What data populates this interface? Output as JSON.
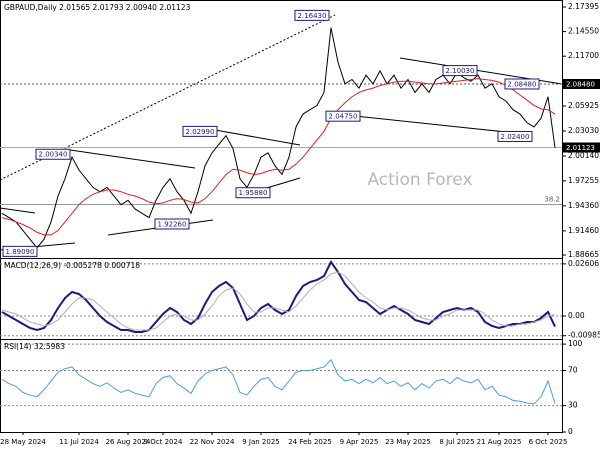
{
  "chart_data": [
    {
      "type": "line",
      "title": "GBPAUD,Daily 2.01565 2.01793 2.00940 2.01123",
      "watermark": "Action Forex",
      "ylim": [
        1.8832,
        2.1821
      ],
      "yticks": [
        2.17395,
        {
          "value": 2.1455,
          "label": "2.14550"
        },
        {
          "value": 2.117,
          "label": "2.11700"
        },
        2.05925,
        {
          "value": 2.0303,
          "label": "2.03030"
        },
        {
          "value": 2.0014,
          "label": "2.00140"
        },
        1.97255,
        {
          "value": 1.9436,
          "label": "1.94360"
        },
        {
          "value": 1.9146,
          "label": "1.91460"
        },
        1.88665
      ],
      "grid": false,
      "series": [
        {
          "color": "#000000",
          "width": 1,
          "values": [
            1.935,
            1.93,
            1.925,
            1.915,
            1.905,
            1.895,
            1.905,
            1.925,
            1.955,
            1.975,
            2.0,
            1.985,
            1.975,
            1.965,
            1.96,
            1.965,
            1.955,
            1.945,
            1.95,
            1.94,
            1.935,
            1.93,
            1.95,
            1.965,
            1.975,
            1.96,
            1.95,
            1.935,
            1.96,
            1.99,
            2.005,
            2.015,
            2.025,
            2.01,
            1.975,
            1.965,
            1.98,
            2.0,
            2.005,
            1.99,
            1.98,
            2.0,
            2.035,
            2.05,
            2.055,
            2.06,
            2.075,
            2.15,
            2.11,
            2.085,
            2.09,
            2.08,
            2.095,
            2.085,
            2.1,
            2.085,
            2.095,
            2.08,
            2.09,
            2.075,
            2.085,
            2.075,
            2.09,
            2.095,
            2.085,
            2.098,
            2.092,
            2.088,
            2.095,
            2.08,
            2.085,
            2.07,
            2.065,
            2.055,
            2.05,
            2.04,
            2.035,
            2.045,
            2.07,
            2.011
          ]
        },
        {
          "color": "#e02020",
          "width": 1,
          "values": [
            1.93,
            1.928,
            1.925,
            1.922,
            1.918,
            1.913,
            1.91,
            1.91,
            1.915,
            1.925,
            1.935,
            1.945,
            1.952,
            1.957,
            1.96,
            1.962,
            1.962,
            1.96,
            1.957,
            1.955,
            1.952,
            1.948,
            1.946,
            1.947,
            1.95,
            1.952,
            1.951,
            1.948,
            1.947,
            1.952,
            1.96,
            1.97,
            1.98,
            1.986,
            1.985,
            1.982,
            1.98,
            1.981,
            1.984,
            1.986,
            1.985,
            1.986,
            1.992,
            2.0,
            2.01,
            2.02,
            2.03,
            2.045,
            2.055,
            2.063,
            2.07,
            2.075,
            2.078,
            2.08,
            2.083,
            2.085,
            2.087,
            2.088,
            2.088,
            2.087,
            2.086,
            2.085,
            2.085,
            2.086,
            2.087,
            2.088,
            2.089,
            2.09,
            2.091,
            2.09,
            2.089,
            2.087,
            2.083,
            2.078,
            2.072,
            2.066,
            2.06,
            2.056,
            2.055,
            2.05
          ]
        }
      ],
      "price_labels": [
        {
          "value": 2.1643,
          "label": "2.16430"
        },
        {
          "value": 2.1003,
          "label": "2.10030"
        },
        {
          "value": 2.0848,
          "label": "2.08480"
        },
        {
          "value": 2.0475,
          "label": "2.04750"
        },
        {
          "value": 2.024,
          "label": "2.02400"
        },
        {
          "value": 2.0299,
          "label": "2.02990"
        },
        {
          "value": 2.0034,
          "label": "2.00340"
        },
        {
          "value": 1.9588,
          "label": "1.95880"
        },
        {
          "value": 1.9226,
          "label": "1.92260"
        },
        {
          "value": 1.8909,
          "label": "1.89090"
        }
      ],
      "axis_markers": [
        {
          "value": 2.0848,
          "label": "2.08480"
        },
        {
          "value": 2.01123,
          "label": "2.01123"
        }
      ],
      "fib_level": {
        "label": "38.2",
        "price": 1.9452
      }
    },
    {
      "type": "line",
      "title": "MACD(12,26,9) -0.005278 0.000718",
      "ylim": [
        -0.0115,
        0.029
      ],
      "yticks": [
        0.026061,
        {
          "value": 0,
          "label": "0.00"
        },
        -0.009854
      ],
      "grid": true,
      "series": [
        {
          "color": "#1a1a80",
          "width": 2,
          "values": [
            0.002,
            0.0,
            -0.002,
            -0.004,
            -0.006,
            -0.007,
            -0.006,
            -0.002,
            0.004,
            0.009,
            0.012,
            0.011,
            0.008,
            0.004,
            0.0,
            -0.003,
            -0.005,
            -0.007,
            -0.007,
            -0.008,
            -0.008,
            -0.007,
            -0.003,
            0.001,
            0.004,
            0.002,
            -0.002,
            -0.004,
            -0.001,
            0.006,
            0.012,
            0.015,
            0.017,
            0.014,
            0.006,
            -0.002,
            0.0,
            0.004,
            0.006,
            0.003,
            0.001,
            0.003,
            0.01,
            0.015,
            0.017,
            0.018,
            0.02,
            0.027,
            0.022,
            0.016,
            0.012,
            0.008,
            0.007,
            0.004,
            0.001,
            0.003,
            0.005,
            0.003,
            0.001,
            -0.002,
            -0.003,
            -0.004,
            -0.001,
            0.002,
            0.003,
            0.004,
            0.003,
            0.004,
            0.002,
            -0.003,
            -0.005,
            -0.006,
            -0.005,
            -0.004,
            -0.004,
            -0.003,
            -0.003,
            -0.001,
            0.002,
            -0.005278
          ]
        },
        {
          "color": "#b0b0b0",
          "width": 1,
          "values": [
            0.003,
            0.002,
            0.001,
            -0.001,
            -0.003,
            -0.004,
            -0.005,
            -0.004,
            -0.002,
            0.002,
            0.006,
            0.009,
            0.009,
            0.008,
            0.005,
            0.002,
            -0.001,
            -0.004,
            -0.006,
            -0.007,
            -0.007,
            -0.007,
            -0.006,
            -0.003,
            0.0,
            0.001,
            0.0,
            -0.002,
            -0.002,
            0.001,
            0.005,
            0.01,
            0.013,
            0.014,
            0.011,
            0.006,
            0.002,
            0.002,
            0.004,
            0.004,
            0.003,
            0.002,
            0.005,
            0.009,
            0.013,
            0.016,
            0.018,
            0.021,
            0.022,
            0.02,
            0.016,
            0.012,
            0.009,
            0.007,
            0.004,
            0.003,
            0.004,
            0.004,
            0.003,
            0.001,
            -0.001,
            -0.002,
            -0.002,
            0.0,
            0.001,
            0.003,
            0.003,
            0.003,
            0.003,
            0.001,
            -0.002,
            -0.004,
            -0.005,
            -0.005,
            -0.004,
            -0.004,
            -0.003,
            -0.002,
            0.0,
            0.000718
          ]
        }
      ]
    },
    {
      "type": "line",
      "title": "RSI(14) 32.5983",
      "ylim": [
        0,
        105.8
      ],
      "yticks": [
        100,
        70,
        30,
        0
      ],
      "grid": true,
      "categories": [
        null,
        null,
        null,
        "28 May 2024",
        null,
        null,
        null,
        null,
        null,
        null,
        null,
        "11 Jul 2024",
        null,
        null,
        null,
        null,
        null,
        null,
        "26 Aug 2024",
        null,
        null,
        null,
        null,
        "9 Oct 2024",
        null,
        null,
        null,
        null,
        null,
        null,
        "22 Nov 2024",
        null,
        null,
        null,
        null,
        null,
        null,
        "9 Jan 2025",
        null,
        null,
        null,
        null,
        null,
        null,
        "24 Feb 2025",
        null,
        null,
        null,
        null,
        null,
        null,
        "9 Apr 2025",
        null,
        null,
        null,
        null,
        null,
        null,
        "23 May 2025",
        null,
        null,
        null,
        null,
        null,
        null,
        "8 Jul 2025",
        null,
        null,
        null,
        null,
        null,
        "21 Aug 2025",
        null,
        null,
        null,
        null,
        null,
        null,
        "6 Oct 2025",
        null
      ],
      "series": [
        {
          "color": "#4a9ee0",
          "width": 1,
          "values": [
            60,
            55,
            52,
            45,
            42,
            40,
            48,
            58,
            68,
            72,
            74,
            65,
            60,
            55,
            52,
            56,
            50,
            45,
            48,
            44,
            42,
            40,
            55,
            62,
            64,
            55,
            50,
            44,
            58,
            66,
            70,
            72,
            74,
            65,
            45,
            42,
            52,
            60,
            62,
            52,
            48,
            58,
            68,
            70,
            70,
            72,
            74,
            82,
            65,
            58,
            60,
            55,
            60,
            56,
            62,
            55,
            58,
            52,
            56,
            48,
            55,
            50,
            58,
            60,
            55,
            62,
            58,
            56,
            60,
            48,
            52,
            42,
            40,
            36,
            35,
            33,
            32,
            40,
            58,
            32.5983
          ]
        }
      ]
    }
  ]
}
